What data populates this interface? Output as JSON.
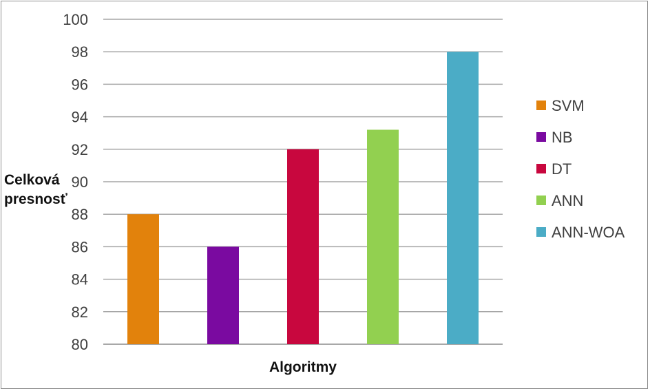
{
  "chart_data": {
    "type": "bar",
    "categories": [
      "SVM",
      "NB",
      "DT",
      "ANN",
      "ANN-WOA"
    ],
    "values": [
      88,
      86,
      92,
      93.2,
      98
    ],
    "colors": [
      "#e2820c",
      "#7a0aa0",
      "#c8073e",
      "#92d050",
      "#4bacc6"
    ],
    "ylabel_lines": [
      "Celková",
      "presnosť"
    ],
    "xlabel": "Algoritmy",
    "ylim": [
      80,
      100
    ],
    "yticks": [
      80,
      82,
      84,
      86,
      88,
      90,
      92,
      94,
      96,
      98,
      100
    ],
    "grid": true,
    "legend_position": "right",
    "legend": [
      "SVM",
      "NB",
      "DT",
      "ANN",
      "ANN-WOA"
    ]
  }
}
